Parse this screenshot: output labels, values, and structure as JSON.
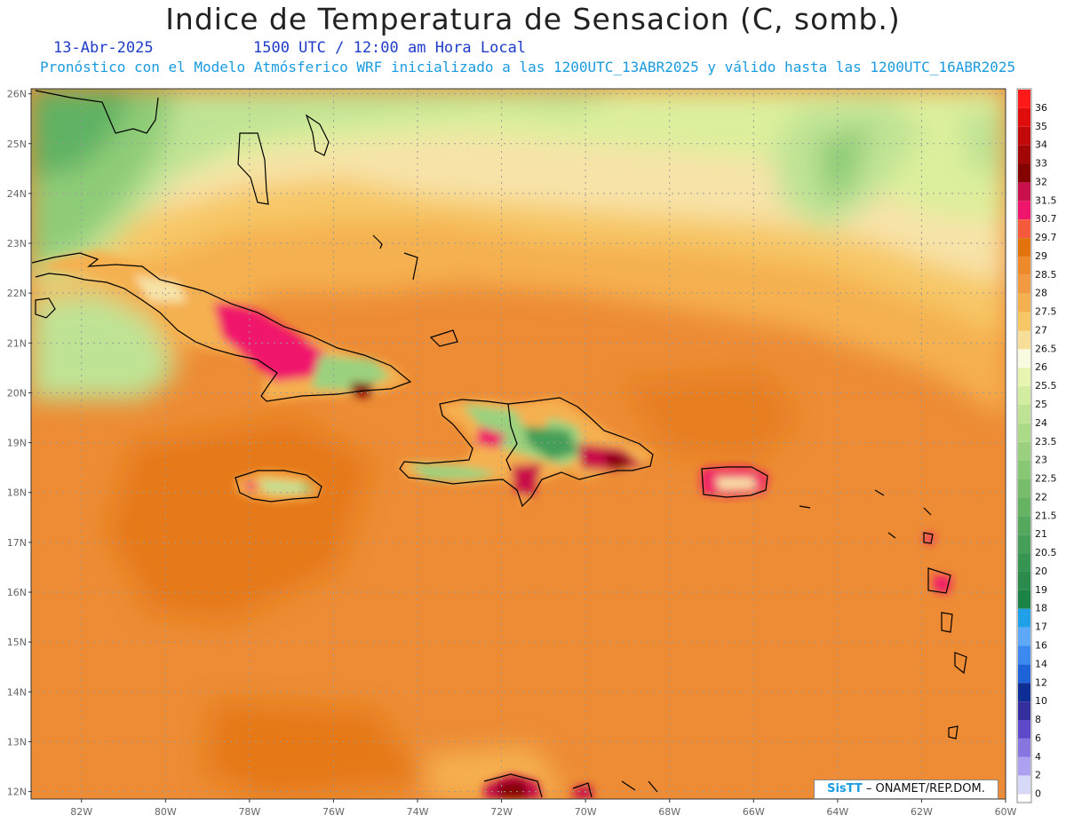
{
  "header": {
    "title": "Indice de Temperatura de Sensacion (C, somb.)",
    "date": "13-Abr-2025",
    "time": "1500 UTC / 12:00 am Hora Local",
    "subtitle": "Pronóstico con el Modelo Atmósferico WRF inicializado a las 1200UTC_13ABR2025 y válido hasta las  1200UTC_16ABR2025"
  },
  "map": {
    "lon_range": [
      -83.2,
      -60
    ],
    "lat_range": [
      11.85,
      26.1
    ],
    "lat_labels": [
      "26N",
      "25N",
      "24N",
      "23N",
      "22N",
      "21N",
      "20N",
      "19N",
      "18N",
      "17N",
      "16N",
      "15N",
      "14N",
      "13N",
      "12N"
    ],
    "lat_values": [
      26,
      25,
      24,
      23,
      22,
      21,
      20,
      19,
      18,
      17,
      16,
      15,
      14,
      13,
      12
    ],
    "lon_labels": [
      "82W",
      "80W",
      "78W",
      "76W",
      "74W",
      "72W",
      "70W",
      "68W",
      "66W",
      "64W",
      "62W",
      "60W"
    ],
    "lon_values": [
      -82,
      -80,
      -78,
      -76,
      -74,
      -72,
      -70,
      -68,
      -66,
      -64,
      -62,
      -60
    ],
    "colors": {
      "ocean_base": "#ed8c35",
      "coast": "#000000",
      "grid": "#9a9a9a"
    }
  },
  "legend": {
    "labels": [
      "36",
      "35",
      "34",
      "33",
      "32",
      "31.5",
      "30.7",
      "29.7",
      "29",
      "28.5",
      "28",
      "27.5",
      "27",
      "26.5",
      "26",
      "25.5",
      "25",
      "24",
      "23.5",
      "23",
      "22.5",
      "22",
      "21.5",
      "21",
      "20.5",
      "20",
      "19",
      "18",
      "17",
      "16",
      "14",
      "12",
      "10",
      "8",
      "6",
      "4",
      "2",
      "0"
    ],
    "colors": [
      "#ff1a1a",
      "#e00d0d",
      "#c20a0a",
      "#a30606",
      "#850202",
      "#c8104a",
      "#f0156c",
      "#f55a3c",
      "#e3740d",
      "#ef8a2c",
      "#f29a42",
      "#f5b04f",
      "#f7c766",
      "#f7df9a",
      "#fafae0",
      "#e6f5b0",
      "#d2eca0",
      "#bfe394",
      "#acdb88",
      "#9bd17e",
      "#88c774",
      "#77bd6c",
      "#66b364",
      "#54a95e",
      "#459f58",
      "#369552",
      "#2a8b4c",
      "#1a8346",
      "#1fa0e8",
      "#5ea8f8",
      "#3c8af0",
      "#1f63d8",
      "#0f2e95",
      "#352e9e",
      "#5c48c8",
      "#8875e0",
      "#aca0f0",
      "#d8d8f8"
    ]
  },
  "footer": {
    "brand": "SisTT",
    "credit": "– ONAMET/REP.DOM."
  }
}
